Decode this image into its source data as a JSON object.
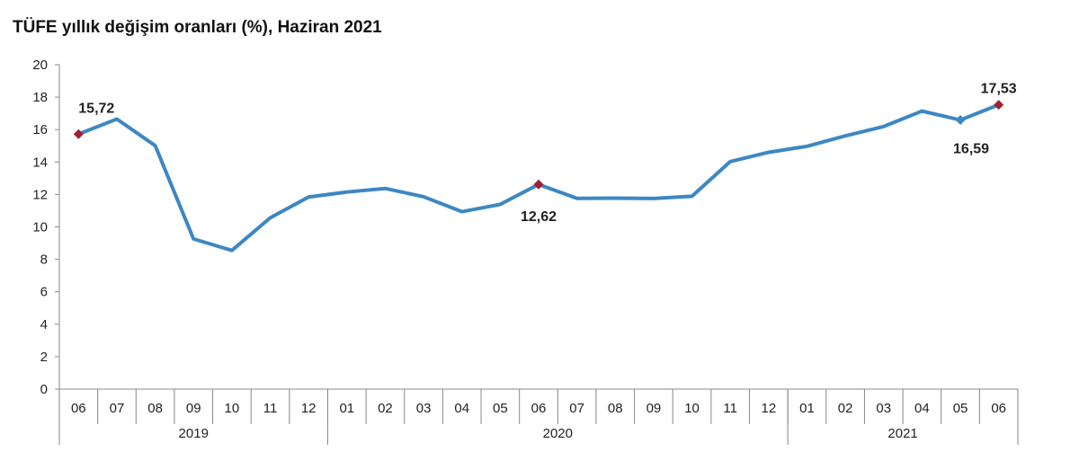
{
  "chart_data": {
    "type": "line",
    "title": "TÜFE yıllık değişim oranları (%), Haziran 2021",
    "xlabel": "",
    "ylabel": "",
    "ylim": [
      0,
      20
    ],
    "yticks": [
      "0",
      "2",
      "4",
      "6",
      "8",
      "10",
      "12",
      "14",
      "16",
      "18",
      "20"
    ],
    "categories": [
      "06",
      "07",
      "08",
      "09",
      "10",
      "11",
      "12",
      "01",
      "02",
      "03",
      "04",
      "05",
      "06",
      "07",
      "08",
      "09",
      "10",
      "11",
      "12",
      "01",
      "02",
      "03",
      "04",
      "05",
      "06"
    ],
    "year_groups": [
      {
        "label": "2019",
        "start": 0,
        "end": 6
      },
      {
        "label": "2020",
        "start": 7,
        "end": 18
      },
      {
        "label": "2021",
        "start": 19,
        "end": 24
      }
    ],
    "series": [
      {
        "values": [
          15.72,
          16.65,
          15.01,
          9.26,
          8.55,
          10.56,
          11.84,
          12.15,
          12.37,
          11.86,
          10.94,
          11.39,
          12.62,
          11.76,
          11.77,
          11.75,
          11.89,
          14.03,
          14.6,
          14.97,
          15.61,
          16.19,
          17.14,
          16.59,
          17.53
        ]
      }
    ],
    "annotations": [
      {
        "index": 0,
        "label": "15,72"
      },
      {
        "index": 12,
        "label": "12,62"
      },
      {
        "index": 23,
        "label": "16,59"
      },
      {
        "index": 24,
        "label": "17,53"
      }
    ],
    "grid": false,
    "legend": "none",
    "colors": {
      "line": "#3d87c3",
      "marker_highlight": "#9b2335",
      "marker_normal": "#3d87c3",
      "axis": "#888888",
      "text": "#222222"
    }
  }
}
